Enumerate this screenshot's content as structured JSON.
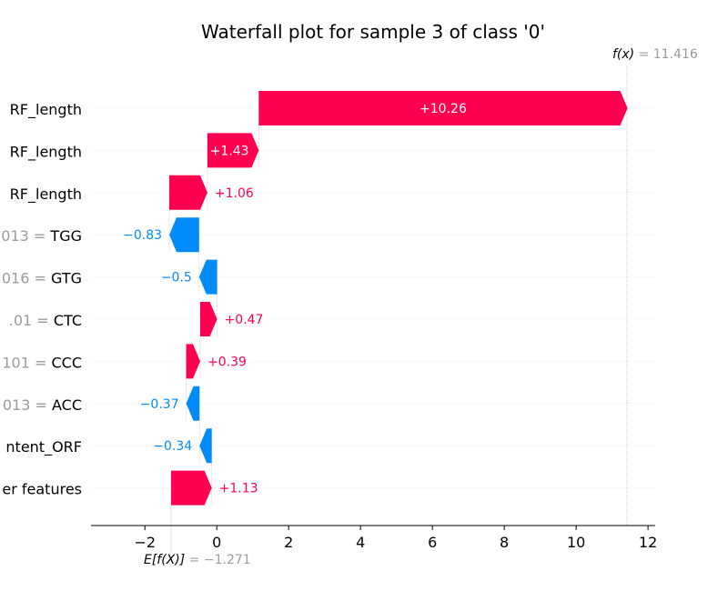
{
  "chart_data": {
    "type": "waterfall",
    "title": "Waterfall plot for sample 3 of class '0'",
    "base_value": -1.271,
    "base_label": "E[f(X)]",
    "base_value_text": "= −1.271",
    "output_value": 11.416,
    "output_label": "f(x)",
    "output_value_text": "= 11.416",
    "xlim": [
      -3.5,
      12.2
    ],
    "xticks": [
      -2,
      0,
      2,
      4,
      6,
      8,
      10,
      12
    ],
    "xtick_labels": [
      "−2",
      "0",
      "2",
      "4",
      "6",
      "8",
      "10",
      "12"
    ],
    "grid": "horizontal dotted per row",
    "colors": {
      "positive": "#ff0051",
      "negative": "#008bfb",
      "dim_text": "#9b9b9b",
      "axis": "#000000"
    },
    "features": [
      {
        "value_text": "",
        "name": "RF_length",
        "shap": 10.26,
        "label": "+10.26"
      },
      {
        "value_text": "",
        "name": "RF_length",
        "shap": 1.43,
        "label": "+1.43"
      },
      {
        "value_text": "",
        "name": "RF_length",
        "shap": 1.06,
        "label": "+1.06"
      },
      {
        "value_text": "013 = ",
        "name": "TGG",
        "shap": -0.83,
        "label": "−0.83"
      },
      {
        "value_text": "016 = ",
        "name": "GTG",
        "shap": -0.5,
        "label": "−0.5"
      },
      {
        "value_text": ".01 = ",
        "name": "CTC",
        "shap": 0.47,
        "label": "+0.47"
      },
      {
        "value_text": "101 = ",
        "name": "CCC",
        "shap": 0.39,
        "label": "+0.39"
      },
      {
        "value_text": "013 = ",
        "name": "ACC",
        "shap": -0.37,
        "label": "−0.37"
      },
      {
        "value_text": "",
        "name": "ntent_ORF",
        "shap": -0.34,
        "label": "−0.34"
      },
      {
        "value_text": "",
        "name": "er features",
        "shap": 1.13,
        "label": "+1.13"
      }
    ]
  }
}
